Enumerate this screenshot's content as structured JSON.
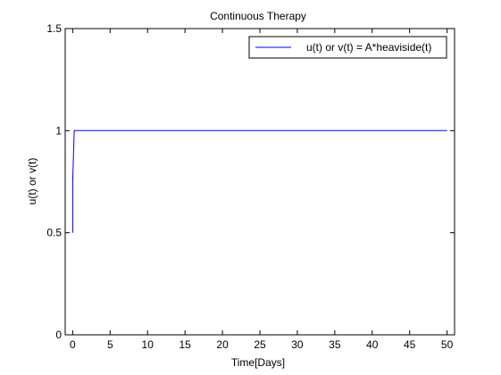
{
  "chart_data": {
    "type": "line",
    "title": "Continuous Therapy",
    "xlabel": "Time[Days]",
    "ylabel": "u(t) or v(t)",
    "xlim": [
      -1,
      51
    ],
    "ylim": [
      0,
      1.5
    ],
    "xticks": [
      0,
      5,
      10,
      15,
      20,
      25,
      30,
      35,
      40,
      45,
      50
    ],
    "yticks": [
      0,
      0.5,
      1,
      1.5
    ],
    "xtick_labels": [
      "0",
      "5",
      "10",
      "15",
      "20",
      "25",
      "30",
      "35",
      "40",
      "45",
      "50"
    ],
    "ytick_labels": [
      "0",
      "0.5",
      "1",
      "1.5"
    ],
    "grid": false,
    "legend_position": "top-right",
    "series": [
      {
        "name": "u(t) or v(t) = A*heaviside(t)",
        "color": "#0000ff",
        "x": [
          0,
          0,
          0,
          0.2,
          50
        ],
        "y": [
          0.5,
          0.75,
          0.75,
          1,
          1
        ]
      }
    ]
  }
}
